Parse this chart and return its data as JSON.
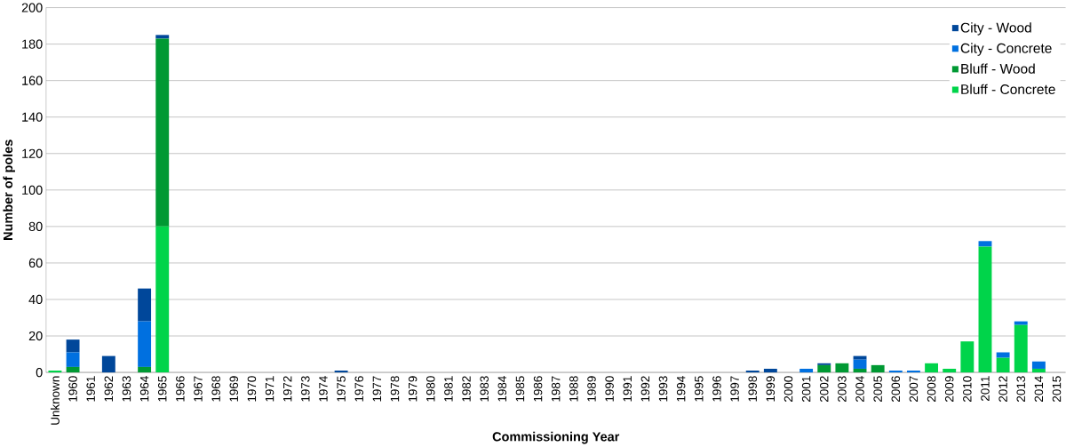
{
  "chart_data": {
    "type": "bar",
    "stacked": true,
    "xlabel": "Commissioning Year",
    "ylabel": "Number of poles",
    "categories": [
      "Unknown",
      "1960",
      "1961",
      "1962",
      "1963",
      "1964",
      "1965",
      "1966",
      "1967",
      "1968",
      "1969",
      "1970",
      "1971",
      "1972",
      "1973",
      "1974",
      "1975",
      "1976",
      "1977",
      "1978",
      "1979",
      "1980",
      "1981",
      "1982",
      "1983",
      "1984",
      "1985",
      "1986",
      "1987",
      "1988",
      "1989",
      "1990",
      "1991",
      "1992",
      "1993",
      "1994",
      "1995",
      "1996",
      "1997",
      "1998",
      "1999",
      "2000",
      "2001",
      "2002",
      "2003",
      "2004",
      "2005",
      "2006",
      "2007",
      "2008",
      "2009",
      "2010",
      "2011",
      "2012",
      "2013",
      "2014",
      "2015"
    ],
    "series": [
      {
        "name": "Bluff - Concrete",
        "color": "#00d44a",
        "values": [
          1,
          0,
          0,
          0,
          0,
          0,
          80,
          0,
          0,
          0,
          0,
          0,
          0,
          0,
          0,
          0,
          0,
          0,
          0,
          0,
          0,
          0,
          0,
          0,
          0,
          0,
          0,
          0,
          0,
          0,
          0,
          0,
          0,
          0,
          0,
          0,
          0,
          0,
          0,
          0,
          0,
          0,
          0,
          0,
          0,
          0,
          0,
          0,
          0,
          5,
          2,
          17,
          69,
          8,
          26,
          2,
          0
        ]
      },
      {
        "name": "Bluff - Wood",
        "color": "#009933",
        "values": [
          0,
          3,
          0,
          0,
          0,
          3,
          103,
          0,
          0,
          0,
          0,
          0,
          0,
          0,
          0,
          0,
          0,
          0,
          0,
          0,
          0,
          0,
          0,
          0,
          0,
          0,
          0,
          0,
          0,
          0,
          0,
          0,
          0,
          0,
          0,
          0,
          0,
          0,
          0,
          0,
          0,
          0,
          0,
          4,
          5,
          2,
          4,
          0,
          0,
          0,
          0,
          0,
          0,
          0,
          0,
          0,
          0
        ]
      },
      {
        "name": "City - Concrete",
        "color": "#0070e0",
        "values": [
          0,
          8,
          0,
          0,
          0,
          25,
          0,
          0,
          0,
          0,
          0,
          0,
          0,
          0,
          0,
          0,
          0,
          0,
          0,
          0,
          0,
          0,
          0,
          0,
          0,
          0,
          0,
          0,
          0,
          0,
          0,
          0,
          0,
          0,
          0,
          0,
          0,
          0,
          0,
          0,
          0,
          0,
          2,
          0,
          0,
          5,
          0,
          1,
          1,
          0,
          0,
          0,
          3,
          3,
          2,
          4,
          0
        ]
      },
      {
        "name": "City - Wood",
        "color": "#00479a",
        "values": [
          0,
          7,
          0,
          9,
          0,
          18,
          2,
          0,
          0,
          0,
          0,
          0,
          0,
          0,
          0,
          0,
          1,
          0,
          0,
          0,
          0,
          0,
          0,
          0,
          0,
          0,
          0,
          0,
          0,
          0,
          0,
          0,
          0,
          0,
          0,
          0,
          0,
          0,
          0,
          1,
          2,
          0,
          0,
          1,
          0,
          2,
          0,
          0,
          0,
          0,
          0,
          0,
          0,
          0,
          0,
          0,
          0
        ]
      }
    ],
    "ylim": [
      0,
      200
    ],
    "yticks": [
      0,
      20,
      40,
      60,
      80,
      100,
      120,
      140,
      160,
      180,
      200
    ],
    "grid": "y",
    "legend": "top right"
  }
}
